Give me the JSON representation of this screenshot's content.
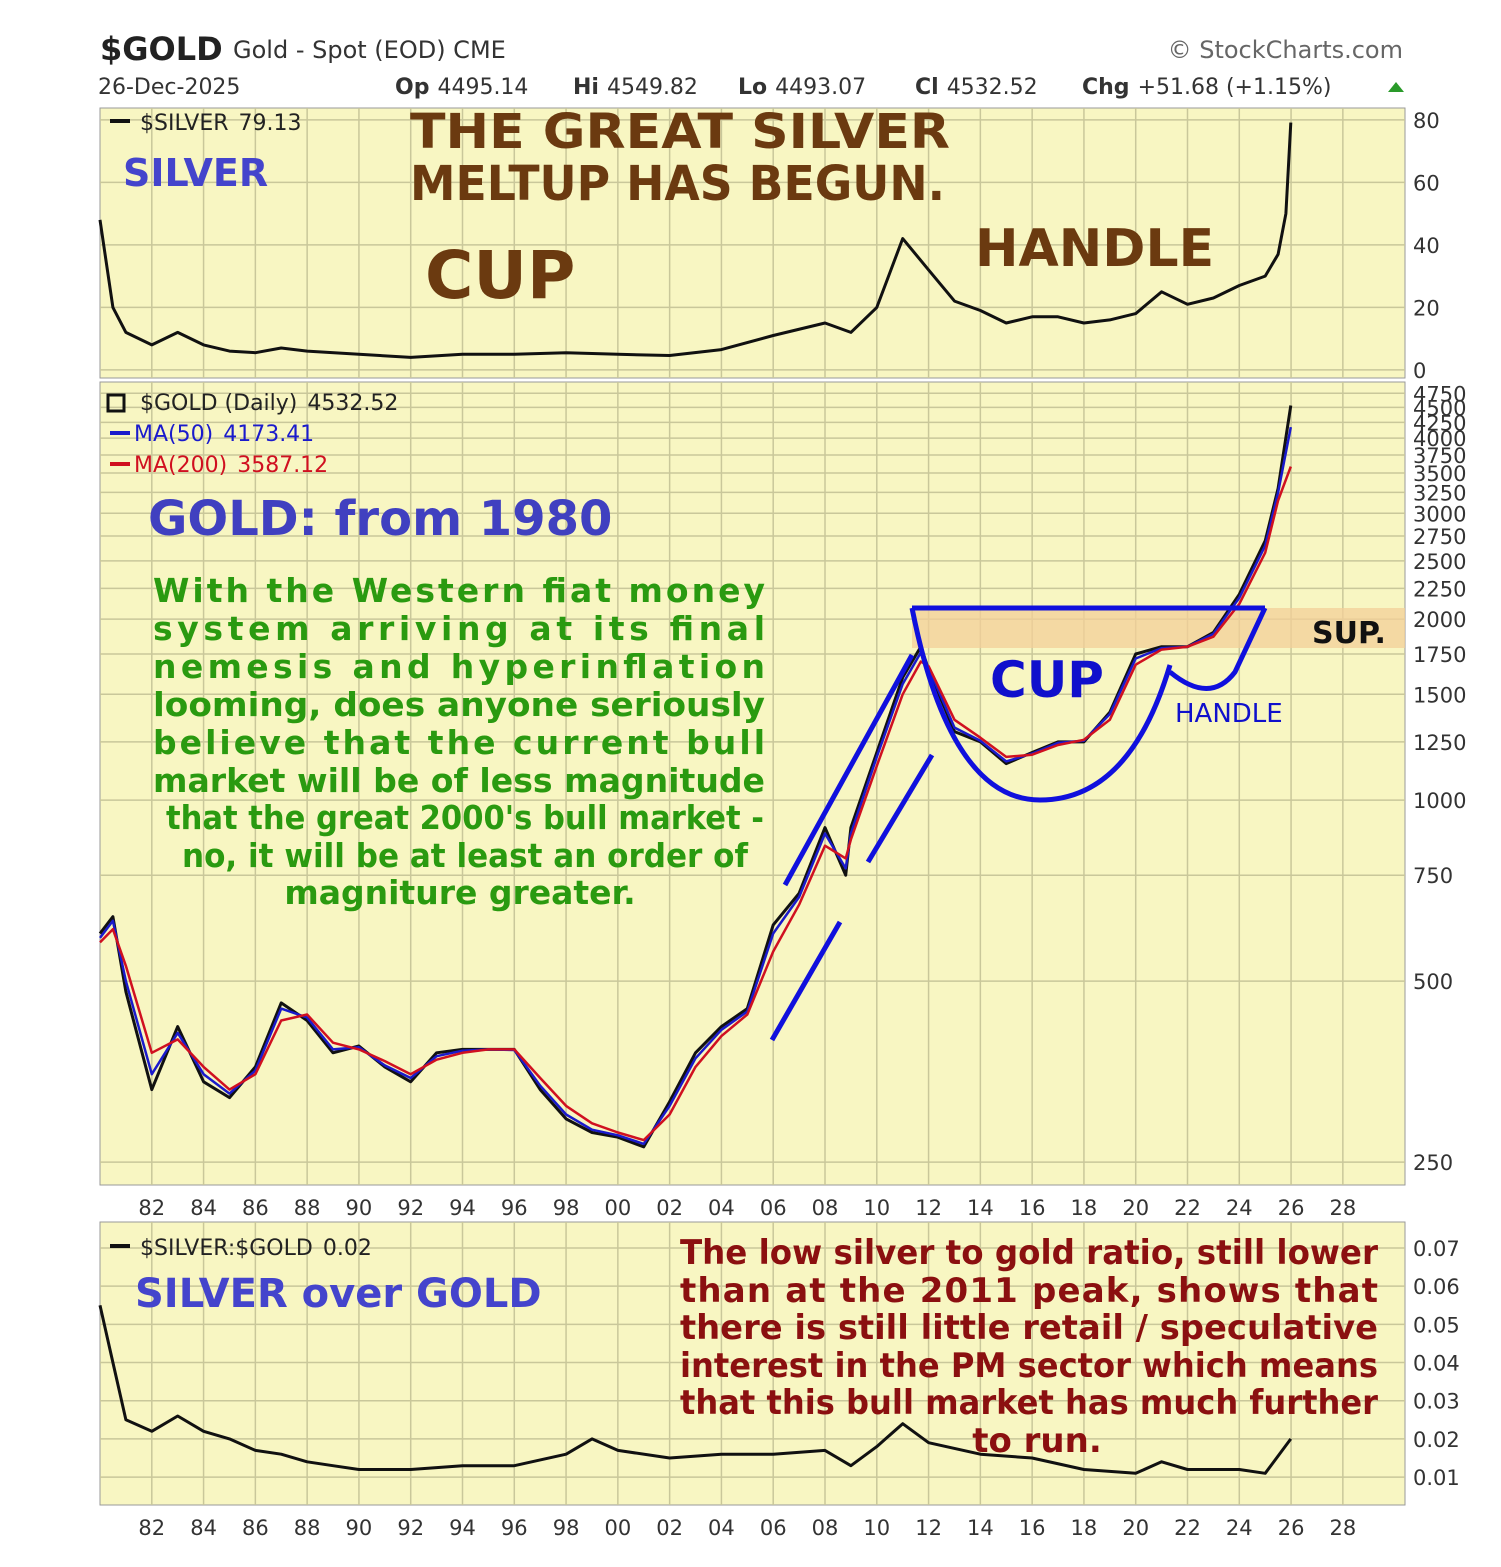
{
  "header": {
    "symbol": "$GOLD",
    "description": "Gold - Spot (EOD) CME",
    "source": "© StockCharts.com",
    "date": "26-Dec-2025",
    "quote": [
      {
        "label": "Op",
        "value": "4495.14"
      },
      {
        "label": "Hi",
        "value": "4549.82"
      },
      {
        "label": "Lo",
        "value": "4493.07"
      },
      {
        "label": "Cl",
        "value": "4532.52"
      },
      {
        "label": "Chg",
        "value": "+51.68 (+1.15%)"
      }
    ]
  },
  "chart_data": [
    {
      "type": "line",
      "panel_label": "SILVER",
      "headline": [
        "THE  GREAT  SILVER",
        "MELTUP HAS BEGUN."
      ],
      "annotations": [
        "CUP",
        "HANDLE"
      ],
      "x": [
        1980,
        1980.5,
        1981,
        1982,
        1983,
        1984,
        1985,
        1986,
        1987,
        1988,
        1990,
        1992,
        1994,
        1996,
        1998,
        2000,
        2002,
        2004,
        2006,
        2008,
        2009,
        2010,
        2011,
        2012,
        2013,
        2014,
        2015,
        2016,
        2017,
        2018,
        2019,
        2020,
        2021,
        2022,
        2023,
        2024,
        2025,
        2025.5,
        2025.8,
        2025.99
      ],
      "series": [
        {
          "name": "$SILVER",
          "color": "#111111",
          "values": [
            48,
            20,
            12,
            8,
            12,
            8,
            6,
            5.5,
            7,
            6,
            5,
            4,
            5,
            5,
            5.5,
            5,
            4.6,
            6.5,
            11,
            15,
            12,
            20,
            42,
            32,
            22,
            19,
            15,
            17,
            17,
            15,
            16,
            18,
            25,
            21,
            23,
            27,
            30,
            37,
            50,
            79.13
          ]
        }
      ],
      "xlim": [
        1980,
        2030.4
      ],
      "ylim": [
        -2.6,
        83.8
      ],
      "yticks": [
        0,
        20,
        40,
        60,
        80
      ],
      "grid": true
    },
    {
      "type": "line",
      "log_scale": true,
      "panel_label": "GOLD: from 1980",
      "commentary": [
        "With the Western fiat money",
        "system arriving at its final",
        "nemesis and hyperinflation",
        "looming, does anyone seriously",
        "believe that the current bull",
        "market will be of less magnitude",
        "that the great 2000's bull market -",
        "no, it will be at least an order of",
        "magniture greater."
      ],
      "annotations": [
        "CUP",
        "HANDLE",
        "SUP."
      ],
      "x": [
        1980,
        1980.5,
        1981,
        1982,
        1983,
        1984,
        1985,
        1986,
        1987,
        1988,
        1989,
        1990,
        1991,
        1992,
        1993,
        1994,
        1995,
        1996,
        1997,
        1998,
        1999,
        2000,
        2001,
        2002,
        2003,
        2004,
        2005,
        2006,
        2007,
        2008,
        2008.8,
        2009,
        2010,
        2011,
        2011.7,
        2012,
        2013,
        2014,
        2015,
        2016,
        2017,
        2018,
        2019,
        2020,
        2021,
        2022,
        2023,
        2024,
        2025,
        2025.5,
        2025.99
      ],
      "series": [
        {
          "name": "$GOLD (Daily)",
          "color": "#111111",
          "values": [
            600,
            640,
            480,
            330,
            420,
            340,
            320,
            360,
            460,
            430,
            380,
            390,
            360,
            340,
            380,
            385,
            385,
            385,
            330,
            295,
            280,
            275,
            265,
            315,
            380,
            420,
            450,
            620,
            700,
            900,
            750,
            900,
            1200,
            1600,
            1800,
            1650,
            1300,
            1250,
            1150,
            1200,
            1250,
            1250,
            1400,
            1750,
            1800,
            1800,
            1900,
            2200,
            2700,
            3300,
            4532.52
          ]
        },
        {
          "name": "MA(50)",
          "color": "#1a1acc",
          "values": [
            590,
            630,
            500,
            350,
            410,
            350,
            325,
            355,
            450,
            435,
            385,
            388,
            362,
            345,
            375,
            383,
            385,
            384,
            335,
            300,
            283,
            277,
            268,
            310,
            372,
            415,
            445,
            600,
            690,
            880,
            770,
            880,
            1180,
            1560,
            1760,
            1660,
            1320,
            1255,
            1160,
            1195,
            1245,
            1255,
            1390,
            1720,
            1790,
            1800,
            1890,
            2170,
            2650,
            3250,
            4173.41
          ]
        },
        {
          "name": "MA(200)",
          "color": "#d01020",
          "values": [
            580,
            610,
            530,
            380,
            400,
            360,
            330,
            350,
            430,
            440,
            395,
            385,
            368,
            350,
            370,
            380,
            385,
            385,
            345,
            310,
            290,
            280,
            272,
            300,
            360,
            405,
            440,
            560,
            670,
            840,
            800,
            860,
            1140,
            1500,
            1700,
            1670,
            1360,
            1270,
            1180,
            1190,
            1235,
            1260,
            1360,
            1680,
            1780,
            1800,
            1870,
            2120,
            2580,
            3150,
            3587.12
          ]
        }
      ],
      "xlim": [
        1980,
        2030.4
      ],
      "ylim": [
        229,
        4960
      ],
      "yticks": [
        250,
        500,
        750,
        1000,
        1250,
        1500,
        1750,
        2000,
        2250,
        2500,
        2750,
        3000,
        3250,
        3500,
        3750,
        4000,
        4250,
        4500,
        4750
      ],
      "xticks": [
        {
          "value": 1982,
          "label": "82"
        },
        {
          "value": 1984,
          "label": "84"
        },
        {
          "value": 1986,
          "label": "86"
        },
        {
          "value": 1988,
          "label": "88"
        },
        {
          "value": 1990,
          "label": "90"
        },
        {
          "value": 1992,
          "label": "92"
        },
        {
          "value": 1994,
          "label": "94"
        },
        {
          "value": 1996,
          "label": "96"
        },
        {
          "value": 1998,
          "label": "98"
        },
        {
          "value": 2000,
          "label": "00"
        },
        {
          "value": 2002,
          "label": "02"
        },
        {
          "value": 2004,
          "label": "04"
        },
        {
          "value": 2006,
          "label": "06"
        },
        {
          "value": 2008,
          "label": "08"
        },
        {
          "value": 2010,
          "label": "10"
        },
        {
          "value": 2012,
          "label": "12"
        },
        {
          "value": 2014,
          "label": "14"
        },
        {
          "value": 2016,
          "label": "16"
        },
        {
          "value": 2018,
          "label": "18"
        },
        {
          "value": 2020,
          "label": "20"
        },
        {
          "value": 2022,
          "label": "22"
        },
        {
          "value": 2024,
          "label": "24"
        },
        {
          "value": 2026,
          "label": "26"
        },
        {
          "value": 2028,
          "label": "28"
        }
      ],
      "grid": true
    },
    {
      "type": "line",
      "panel_label": "SILVER over GOLD",
      "commentary": [
        "The low silver to gold ratio, still lower",
        "than at the 2011 peak, shows that",
        "there is still little retail / speculative",
        "interest in the PM sector which means",
        "that this bull market has much further",
        "to run."
      ],
      "x": [
        1980,
        1980.5,
        1981,
        1982,
        1983,
        1984,
        1985,
        1986,
        1987,
        1988,
        1989,
        1990,
        1992,
        1994,
        1996,
        1998,
        1999,
        2000,
        2002,
        2004,
        2006,
        2008,
        2009,
        2010,
        2011,
        2012,
        2014,
        2016,
        2018,
        2020,
        2021,
        2022,
        2024,
        2025,
        2025.99
      ],
      "series": [
        {
          "name": "$SILVER:$GOLD",
          "color": "#111111",
          "values": [
            0.055,
            0.04,
            0.025,
            0.022,
            0.026,
            0.022,
            0.02,
            0.017,
            0.016,
            0.014,
            0.013,
            0.012,
            0.012,
            0.013,
            0.013,
            0.016,
            0.02,
            0.017,
            0.015,
            0.016,
            0.016,
            0.017,
            0.013,
            0.018,
            0.024,
            0.019,
            0.016,
            0.015,
            0.012,
            0.011,
            0.014,
            0.012,
            0.012,
            0.011,
            0.02
          ]
        }
      ],
      "xlim": [
        1980,
        2030.4
      ],
      "ylim": [
        0.0027,
        0.0768
      ],
      "yticks": [
        0.01,
        0.02,
        0.03,
        0.04,
        0.05,
        0.06,
        0.07
      ],
      "xticks": [
        {
          "value": 1982,
          "label": "82"
        },
        {
          "value": 1984,
          "label": "84"
        },
        {
          "value": 1986,
          "label": "86"
        },
        {
          "value": 1988,
          "label": "88"
        },
        {
          "value": 1990,
          "label": "90"
        },
        {
          "value": 1992,
          "label": "92"
        },
        {
          "value": 1994,
          "label": "94"
        },
        {
          "value": 1996,
          "label": "96"
        },
        {
          "value": 1998,
          "label": "98"
        },
        {
          "value": 2000,
          "label": "00"
        },
        {
          "value": 2002,
          "label": "02"
        },
        {
          "value": 2004,
          "label": "04"
        },
        {
          "value": 2006,
          "label": "06"
        },
        {
          "value": 2008,
          "label": "08"
        },
        {
          "value": 2010,
          "label": "10"
        },
        {
          "value": 2012,
          "label": "12"
        },
        {
          "value": 2014,
          "label": "14"
        },
        {
          "value": 2016,
          "label": "16"
        },
        {
          "value": 2018,
          "label": "18"
        },
        {
          "value": 2020,
          "label": "20"
        },
        {
          "value": 2022,
          "label": "22"
        },
        {
          "value": 2024,
          "label": "24"
        },
        {
          "value": 2026,
          "label": "26"
        },
        {
          "value": 2028,
          "label": "28"
        }
      ],
      "grid": true
    }
  ]
}
